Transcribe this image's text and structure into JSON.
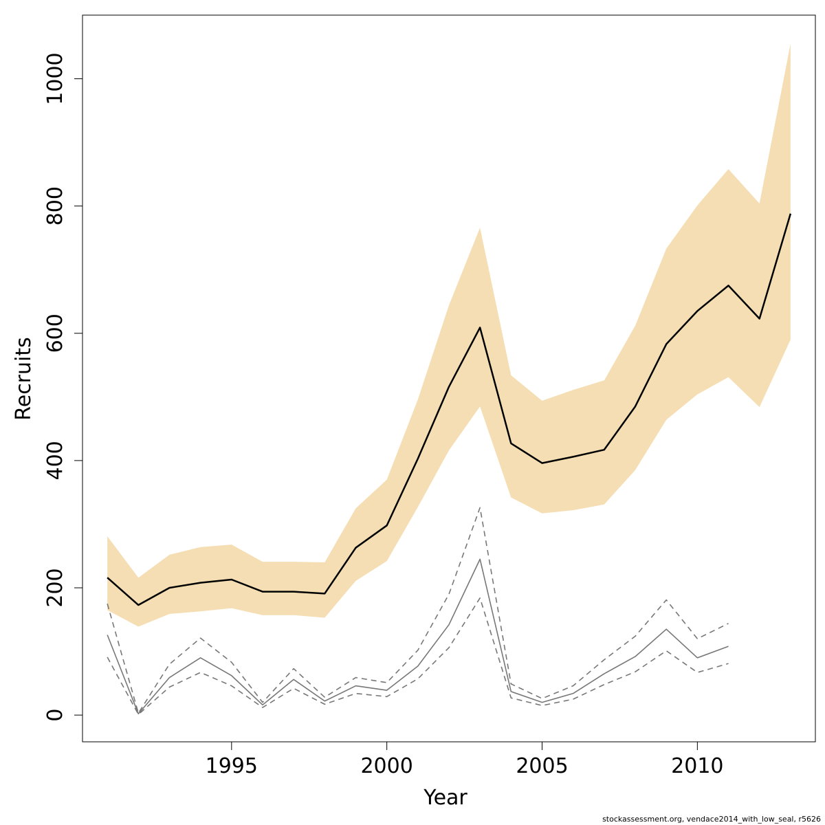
{
  "chart_data": {
    "type": "line",
    "title": "",
    "xlabel": "Year",
    "ylabel": "Recruits",
    "xlim": [
      1990.2,
      2013.8
    ],
    "ylim": [
      -42,
      1100
    ],
    "x_ticks": [
      1995,
      2000,
      2005,
      2010
    ],
    "x_tick_labels": [
      "1995",
      "2000",
      "2005",
      "2010"
    ],
    "y_ticks": [
      0,
      200,
      400,
      600,
      800,
      1000
    ],
    "y_tick_labels": [
      "0",
      "200",
      "400",
      "600",
      "800",
      "1000"
    ],
    "grid": false,
    "legend": "none",
    "band_color": "#f5deb3",
    "series": [
      {
        "role": "ci-band",
        "x": [
          1991,
          1992,
          1993,
          1994,
          1995,
          1996,
          1997,
          1998,
          1999,
          2000,
          2001,
          2002,
          2003,
          2004,
          2005,
          2006,
          2007,
          2008,
          2009,
          2010,
          2011,
          2012,
          2013
        ],
        "lower": [
          165,
          139,
          159,
          163,
          168,
          157,
          157,
          153,
          211,
          242,
          327,
          416,
          485,
          342,
          317,
          322,
          331,
          385,
          464,
          504,
          531,
          484,
          590
        ],
        "upper": [
          281,
          216,
          252,
          264,
          268,
          241,
          241,
          240,
          325,
          370,
          496,
          644,
          766,
          534,
          494,
          511,
          526,
          612,
          733,
          801,
          858,
          804,
          1055
        ],
        "color": "#f5deb3"
      },
      {
        "role": "estimate",
        "x": [
          1991,
          1992,
          1993,
          1994,
          1995,
          1996,
          1997,
          1998,
          1999,
          2000,
          2001,
          2002,
          2003,
          2004,
          2005,
          2006,
          2007,
          2008,
          2009,
          2010,
          2011,
          2012,
          2013
        ],
        "values": [
          216,
          173,
          200,
          208,
          213,
          194,
          194,
          191,
          263,
          298,
          403,
          516,
          609,
          427,
          396,
          406,
          417,
          485,
          583,
          635,
          675,
          623,
          788
        ],
        "color": "#000000",
        "dash": "solid"
      },
      {
        "role": "previous-estimate",
        "x": [
          1991,
          1992,
          1993,
          1994,
          1995,
          1996,
          1997,
          1998,
          1999,
          2000,
          2001,
          2002,
          2003,
          2004,
          2005,
          2006,
          2007,
          2008,
          2009,
          2010,
          2011
        ],
        "values": [
          126,
          2,
          59,
          90,
          62,
          16,
          56,
          22,
          46,
          39,
          77,
          142,
          245,
          37,
          20,
          34,
          65,
          92,
          135,
          90,
          108
        ],
        "color": "#777777",
        "dash": "solid"
      },
      {
        "role": "previous-upper",
        "x": [
          1991,
          1992,
          1993,
          1994,
          1995,
          1996,
          1997,
          1998,
          1999,
          2000,
          2001,
          2002,
          2003,
          2004,
          2005,
          2006,
          2007,
          2008,
          2009,
          2010,
          2011
        ],
        "values": [
          175,
          3,
          80,
          121,
          83,
          20,
          73,
          28,
          59,
          51,
          102,
          190,
          326,
          49,
          26,
          46,
          87,
          124,
          181,
          120,
          144
        ],
        "color": "#777777",
        "dash": "dashed"
      },
      {
        "role": "previous-lower",
        "x": [
          1991,
          1992,
          1993,
          1994,
          1995,
          1996,
          1997,
          1998,
          1999,
          2000,
          2001,
          2002,
          2003,
          2004,
          2005,
          2006,
          2007,
          2008,
          2009,
          2010,
          2011
        ],
        "values": [
          91,
          1,
          44,
          67,
          46,
          12,
          42,
          17,
          34,
          29,
          57,
          106,
          184,
          27,
          15,
          25,
          48,
          68,
          101,
          67,
          81
        ],
        "color": "#777777",
        "dash": "dashed"
      }
    ]
  },
  "footer": {
    "note": "stockassessment.org, vendace2014_with_low_seal, r5626"
  }
}
